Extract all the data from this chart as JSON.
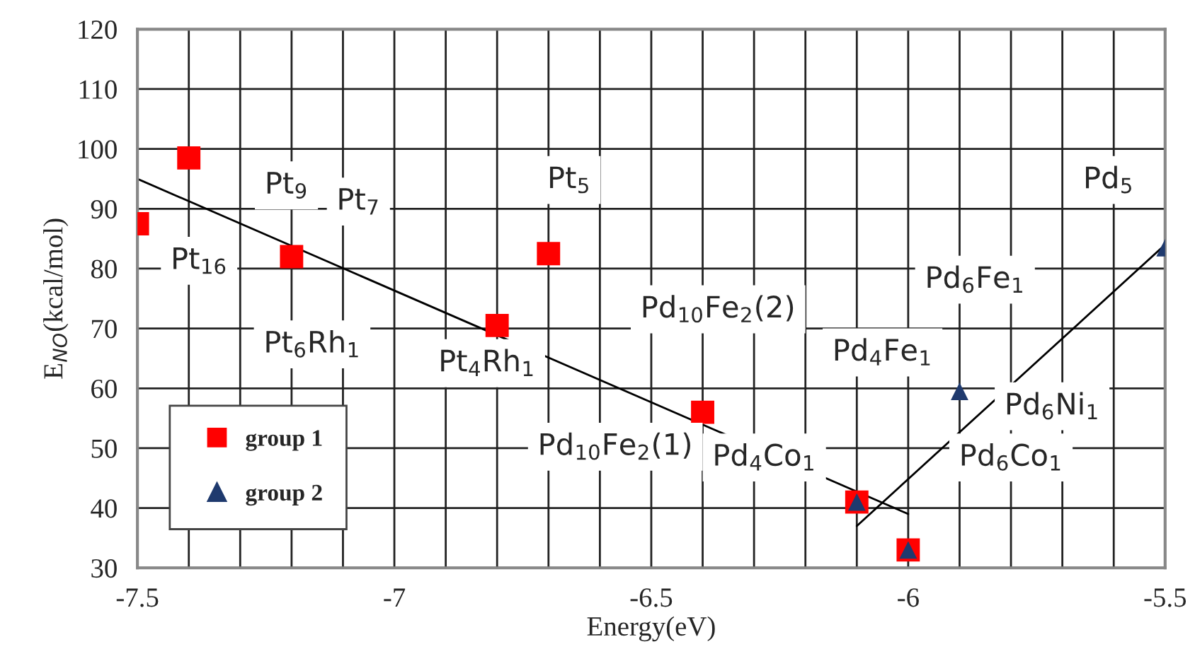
{
  "chart_data": {
    "type": "scatter",
    "xlabel": "Energy(eV)",
    "ylabel": "E$_{NO}$(kcal/mol)",
    "xlim": [
      -7.5,
      -5.5
    ],
    "ylim": [
      30,
      120
    ],
    "xticks": [
      {
        "value": -7.5,
        "label": "-7.5"
      },
      {
        "value": -7.4,
        "label": null
      },
      {
        "value": -7.3,
        "label": null
      },
      {
        "value": -7.2,
        "label": null
      },
      {
        "value": -7.1,
        "label": null
      },
      {
        "value": -7,
        "label": "-7"
      },
      {
        "value": -6.9,
        "label": null
      },
      {
        "value": -6.8,
        "label": null
      },
      {
        "value": -6.7,
        "label": null
      },
      {
        "value": -6.6,
        "label": null
      },
      {
        "value": -6.5,
        "label": "-6.5"
      },
      {
        "value": -6.4,
        "label": null
      },
      {
        "value": -6.3,
        "label": null
      },
      {
        "value": -6.2,
        "label": null
      },
      {
        "value": -6.1,
        "label": null
      },
      {
        "value": -6,
        "label": "-6"
      },
      {
        "value": -5.9,
        "label": null
      },
      {
        "value": -5.8,
        "label": null
      },
      {
        "value": -5.7,
        "label": null
      },
      {
        "value": -5.6,
        "label": null
      },
      {
        "value": -5.5,
        "label": "-5.5"
      }
    ],
    "yticks": [
      30,
      40,
      50,
      60,
      70,
      80,
      90,
      100,
      110,
      120
    ],
    "grid": true,
    "legend": "bottom left",
    "series": [
      {
        "name": "group 1",
        "marker": "square",
        "color": "#ff0000",
        "x": [
          -7.5,
          -7.4,
          -7.2,
          -6.8,
          -6.7,
          -6.4,
          -6.1,
          -6.0
        ],
        "values": [
          87.5,
          98.5,
          82,
          70.5,
          82.5,
          56,
          41,
          33
        ]
      },
      {
        "name": "group 2",
        "marker": "triangle",
        "color": "#1f3a6e",
        "x": [
          -6.1,
          -6.0,
          -5.9,
          -5.5
        ],
        "values": [
          41,
          33,
          59.5,
          83.5
        ]
      },
      {
        "type": "line",
        "marker": "none",
        "color": "#000000",
        "x": [
          -7.5,
          -6.0
        ],
        "values": [
          95,
          39
        ]
      },
      {
        "type": "line",
        "marker": "none",
        "color": "#000000",
        "x": [
          -6.1,
          -5.5
        ],
        "values": [
          37,
          84
        ]
      }
    ],
    "annotations": [
      "Pt$_{9}$",
      "Pt$_{16}$",
      "Pt$_{7}$",
      "Pt$_{5}$",
      "Pt$_{6}$Rh$_{1}$",
      "Pt$_{4}$Rh$_{1}$",
      "Pd$_{10}$Fe$_{2}$(2)",
      "Pd$_{4}$Fe$_{1}$",
      "Pd$_{6}$Fe$_{1}$",
      "Pd$_{5}$",
      "Pd$_{6}$Ni$_{1}$",
      "Pd$_{6}$Co$_{1}$",
      "Pd$_{4}$Co$_{1}$",
      "Pd$_{10}$Fe$_{2}$(1)"
    ]
  }
}
